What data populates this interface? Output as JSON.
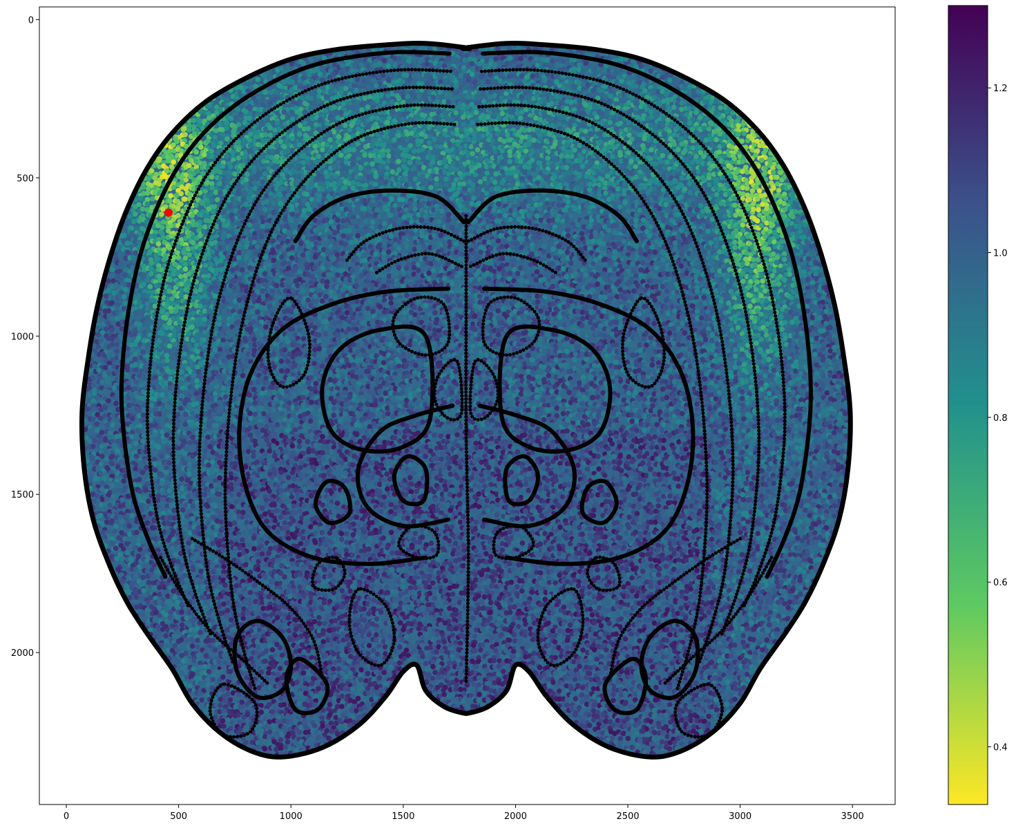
{
  "chart_data": {
    "type": "scatter",
    "title": "",
    "xlabel": "",
    "ylabel": "",
    "xlim": [
      -120,
      3690
    ],
    "ylim": [
      2480,
      -40
    ],
    "y_inverted": true,
    "x_ticks": [
      0,
      500,
      1000,
      1500,
      2000,
      2500,
      3000,
      3500
    ],
    "y_ticks": [
      0,
      500,
      1000,
      1500,
      2000
    ],
    "x_tick_labels": [
      "0",
      "500",
      "1000",
      "1500",
      "2000",
      "2500",
      "3000",
      "3500"
    ],
    "y_tick_labels": [
      "0",
      "500",
      "1000",
      "1500",
      "2000"
    ],
    "colormap": "viridis_r",
    "colorbar": {
      "range": [
        0.33,
        1.3
      ],
      "ticks": [
        0.4,
        0.6,
        0.8,
        1.0,
        1.2
      ],
      "tick_labels": [
        "0.4",
        "0.6",
        "0.8",
        "1.0",
        "1.2"
      ]
    },
    "series": [
      {
        "name": "cells",
        "description": "dense cell scatter covering a coronal brain section, colored by value",
        "value_range": [
          0.35,
          1.25
        ]
      },
      {
        "name": "region boundaries",
        "color": "#000000",
        "description": "black dotted atlas contour outlines"
      },
      {
        "name": "highlight",
        "color": "#ff0000",
        "points": [
          {
            "x": 455,
            "y": 610
          }
        ]
      }
    ],
    "grid": false,
    "legend": "none"
  },
  "colors": {
    "boundary": "#000000",
    "highlight": "#ff0000",
    "viridis_stops": [
      "#fde725",
      "#5ec962",
      "#21918c",
      "#3b528b",
      "#440154"
    ]
  }
}
